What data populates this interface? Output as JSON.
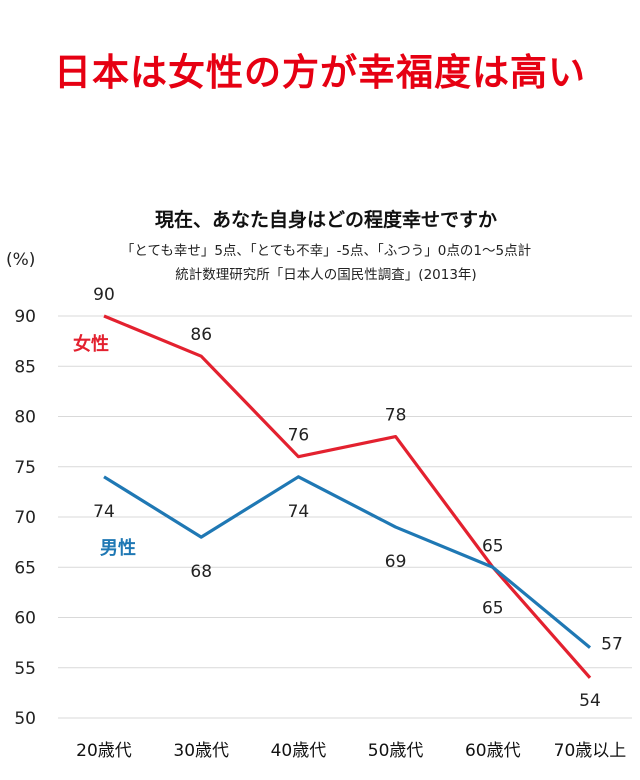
{
  "headline": "日本は女性の方が幸福度は高い",
  "chart_data": {
    "type": "line",
    "title": "現在、あなた自身はどの程度幸せですか",
    "subtitle_lines": [
      "「とても幸せ」5点、「とても不幸」-5点、「ふつう」0点の1〜5点計",
      "統計数理研究所「日本人の国民性調査」(2013年)"
    ],
    "unit_label": "(%)",
    "categories": [
      "20歳代",
      "30歳代",
      "40歳代",
      "50歳代",
      "60歳代",
      "70歳以上"
    ],
    "yticks": [
      50,
      55,
      60,
      65,
      70,
      75,
      80,
      85,
      90
    ],
    "ylim": [
      50,
      90
    ],
    "grid": true,
    "series": [
      {
        "name": "女性",
        "color": "#e3212f",
        "values": [
          90,
          86,
          76,
          78,
          65,
          54
        ]
      },
      {
        "name": "男性",
        "color": "#1f78b4",
        "values": [
          74,
          68,
          74,
          69,
          65,
          57
        ]
      }
    ]
  }
}
